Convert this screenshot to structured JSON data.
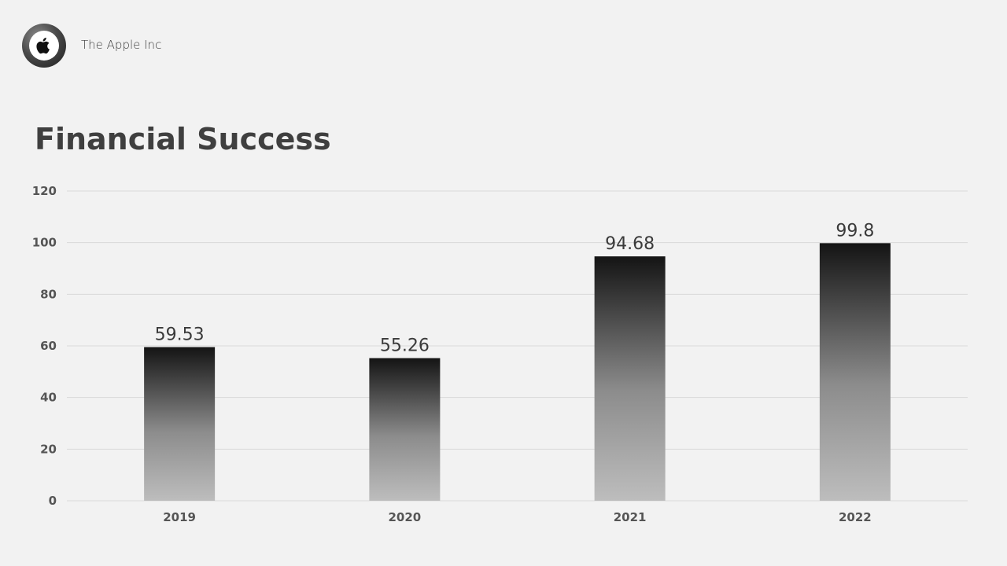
{
  "header": {
    "company_name": "The Apple Inc",
    "logo_icon": "apple-icon"
  },
  "slide": {
    "title": "Financial Success"
  },
  "chart_data": {
    "type": "bar",
    "categories": [
      "2019",
      "2020",
      "2021",
      "2022"
    ],
    "values": [
      59.53,
      55.26,
      94.68,
      99.8
    ],
    "data_labels": [
      "59.53",
      "55.26",
      "94.68",
      "99.8"
    ],
    "ylim": [
      0,
      120
    ],
    "yticks": [
      0,
      20,
      40,
      60,
      80,
      100,
      120
    ],
    "grid": true,
    "legend": "none",
    "bar_gradient": [
      "#141414",
      "#bdbdbd"
    ],
    "gridline_color": "#d9d9d9"
  }
}
